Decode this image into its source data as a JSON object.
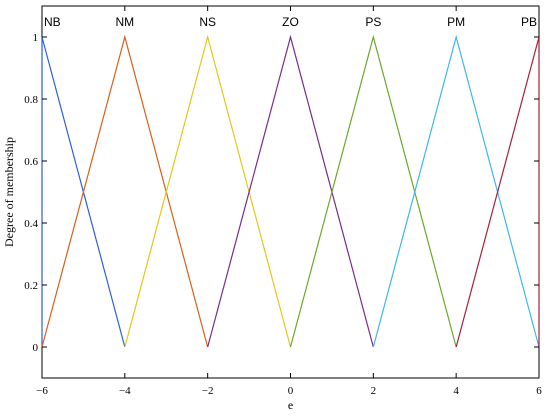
{
  "chart_data": {
    "type": "line",
    "xlabel": "e",
    "ylabel": "Degree of membership",
    "xlim": [
      -6,
      6
    ],
    "ylim": [
      -0.1,
      1.1
    ],
    "x_ticks": [
      -6,
      -4,
      -2,
      0,
      2,
      4,
      6
    ],
    "y_ticks": [
      0,
      0.2,
      0.4,
      0.6,
      0.8,
      1
    ],
    "grid": false,
    "series": [
      {
        "name": "NB",
        "color": "#2b5fd9",
        "x": [
          -6,
          -6,
          -4
        ],
        "y": [
          0,
          1,
          0
        ]
      },
      {
        "name": "NM",
        "color": "#d9601a",
        "x": [
          -6,
          -4,
          -2
        ],
        "y": [
          0,
          1,
          0
        ]
      },
      {
        "name": "NS",
        "color": "#e6c619",
        "x": [
          -4,
          -2,
          0
        ],
        "y": [
          0,
          1,
          0
        ]
      },
      {
        "name": "ZO",
        "color": "#7a2a8c",
        "x": [
          -2,
          0,
          2
        ],
        "y": [
          0,
          1,
          0
        ]
      },
      {
        "name": "PS",
        "color": "#6aa82b",
        "x": [
          0,
          2,
          4
        ],
        "y": [
          0,
          1,
          0
        ]
      },
      {
        "name": "PM",
        "color": "#3fb6ef",
        "x": [
          2,
          4,
          6
        ],
        "y": [
          0,
          1,
          0
        ]
      },
      {
        "name": "PB",
        "color": "#a3203a",
        "x": [
          4,
          6,
          6
        ],
        "y": [
          0,
          1,
          0
        ]
      }
    ]
  }
}
